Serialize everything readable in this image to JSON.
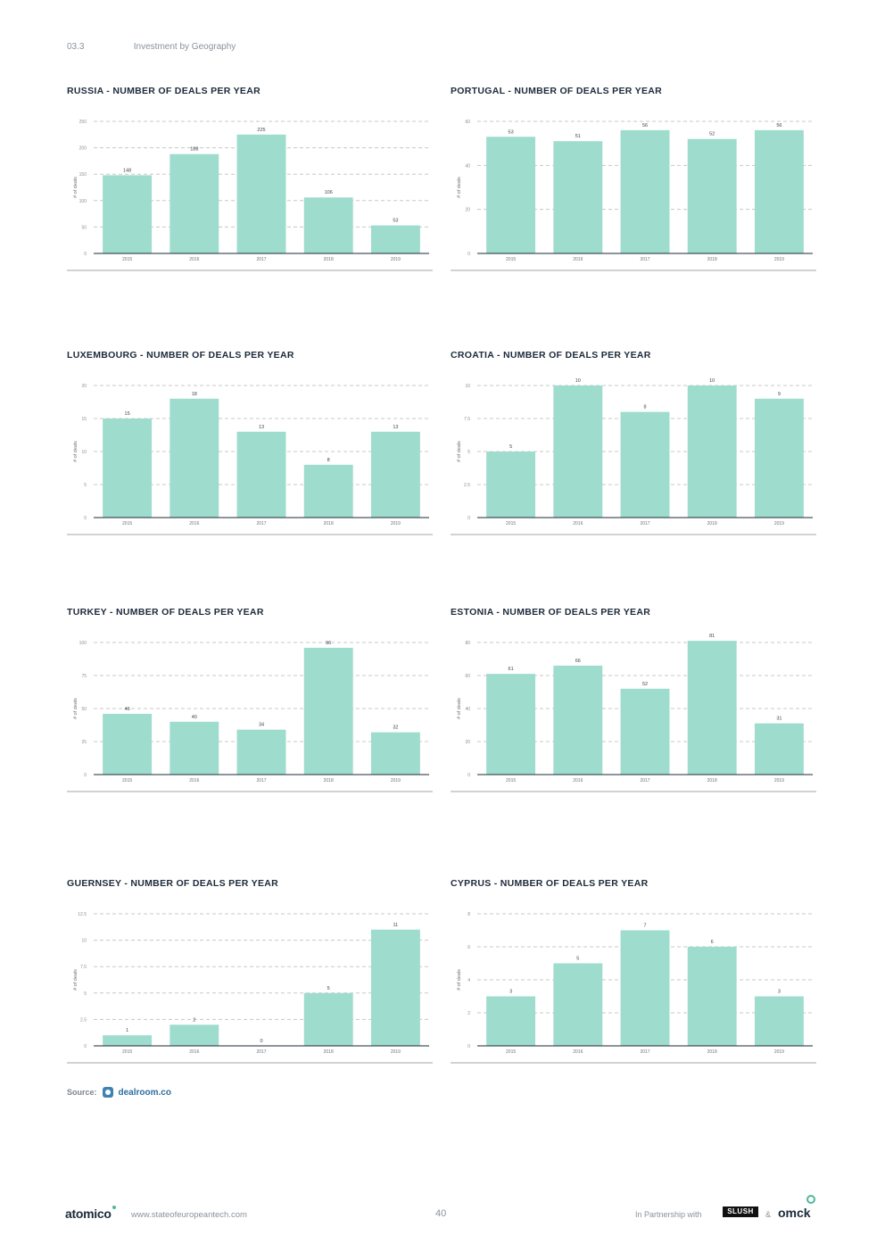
{
  "header": {
    "section_number": "03.3",
    "section_title": "Investment by Geography"
  },
  "y_axis_label": "# of deals",
  "chart_data": [
    {
      "id": "russia",
      "type": "bar",
      "title": "RUSSIA - NUMBER OF DEALS PER YEAR",
      "categories": [
        "2015",
        "2016",
        "2017",
        "2018",
        "2019"
      ],
      "values": [
        148,
        188,
        225,
        106,
        53
      ],
      "ylim": [
        0,
        250
      ],
      "yticks": [
        0,
        50,
        100,
        150,
        200,
        250
      ],
      "ylabel": "# of deals"
    },
    {
      "id": "portugal",
      "type": "bar",
      "title": "PORTUGAL - NUMBER OF DEALS PER YEAR",
      "categories": [
        "2015",
        "2016",
        "2017",
        "2018",
        "2019"
      ],
      "values": [
        53,
        51,
        56,
        52,
        56
      ],
      "ylim": [
        0,
        60
      ],
      "yticks": [
        0,
        20,
        40,
        60
      ],
      "ylabel": "# of deals"
    },
    {
      "id": "luxembourg",
      "type": "bar",
      "title": "LUXEMBOURG - NUMBER OF DEALS PER YEAR",
      "categories": [
        "2015",
        "2016",
        "2017",
        "2018",
        "2019"
      ],
      "values": [
        15,
        18,
        13,
        8,
        13
      ],
      "ylim": [
        0,
        20
      ],
      "yticks": [
        0,
        5,
        10,
        15,
        20
      ],
      "ylabel": "# of deals"
    },
    {
      "id": "croatia",
      "type": "bar",
      "title": "CROATIA - NUMBER OF DEALS PER YEAR",
      "categories": [
        "2015",
        "2016",
        "2017",
        "2018",
        "2019"
      ],
      "values": [
        5,
        10,
        8,
        10,
        9
      ],
      "ylim": [
        0,
        10
      ],
      "yticks": [
        0,
        2.5,
        5,
        7.5,
        10
      ],
      "ylabel": "# of deals"
    },
    {
      "id": "turkey",
      "type": "bar",
      "title": "TURKEY - NUMBER OF DEALS PER YEAR",
      "categories": [
        "2015",
        "2016",
        "2017",
        "2018",
        "2019"
      ],
      "values": [
        46,
        40,
        34,
        96,
        32
      ],
      "ylim": [
        0,
        100
      ],
      "yticks": [
        0,
        25,
        50,
        75,
        100
      ],
      "ylabel": "# of deals"
    },
    {
      "id": "estonia",
      "type": "bar",
      "title": "ESTONIA - NUMBER OF DEALS PER YEAR",
      "categories": [
        "2015",
        "2016",
        "2017",
        "2018",
        "2019"
      ],
      "values": [
        61,
        66,
        52,
        81,
        31
      ],
      "ylim": [
        0,
        80
      ],
      "yticks": [
        0,
        20,
        40,
        60,
        80
      ],
      "ylabel": "# of deals"
    },
    {
      "id": "guernsey",
      "type": "bar",
      "title": "GUERNSEY - NUMBER OF DEALS PER YEAR",
      "categories": [
        "2015",
        "2016",
        "2017",
        "2018",
        "2019"
      ],
      "values": [
        1,
        2,
        0,
        5,
        11
      ],
      "ylim": [
        0,
        12.5
      ],
      "yticks": [
        0,
        2.5,
        5,
        7.5,
        10,
        12.5
      ],
      "ylabel": "# of deals"
    },
    {
      "id": "cyprus",
      "type": "bar",
      "title": "CYPRUS - NUMBER OF DEALS PER YEAR",
      "categories": [
        "2015",
        "2016",
        "2017",
        "2018",
        "2019"
      ],
      "values": [
        3,
        5,
        7,
        6,
        3
      ],
      "ylim": [
        0,
        8
      ],
      "yticks": [
        0,
        2,
        4,
        6,
        8
      ],
      "ylabel": "# of deals"
    }
  ],
  "source": {
    "label": "Source:",
    "name": "dealroom.co"
  },
  "footer": {
    "brand": "atomico",
    "url": "www.stateofeuropeantech.com",
    "page_number": "40",
    "partner_text": "In Partnership with",
    "partner_1": "SLUSH",
    "amp": "&",
    "partner_2": "omck"
  },
  "colors": {
    "bar": "#9edccd",
    "title": "#1d2a3a",
    "grid": "#c8c8c8"
  }
}
